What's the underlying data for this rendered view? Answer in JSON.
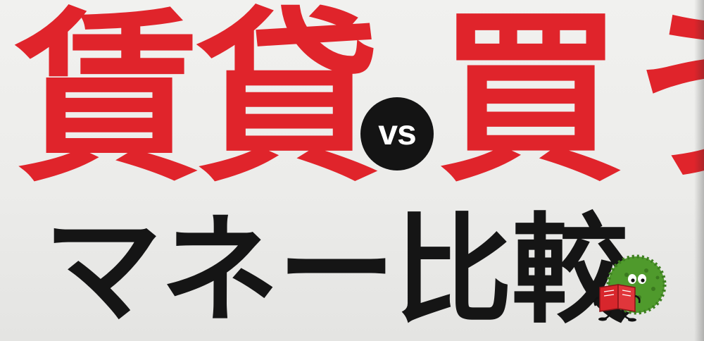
{
  "headline": {
    "left_word": "賃貸",
    "vs_label": "vs",
    "right_word": "買う"
  },
  "subtitle": "マネー比較",
  "mascot": {
    "icon": "green-fuzzy-mascot-reading-book-icon"
  },
  "colors": {
    "headline_red": "#e0242b",
    "vs_circle": "#141414",
    "subtitle_black": "#151515",
    "mascot_green": "#4f9a2c",
    "book_red": "#d8262c"
  }
}
